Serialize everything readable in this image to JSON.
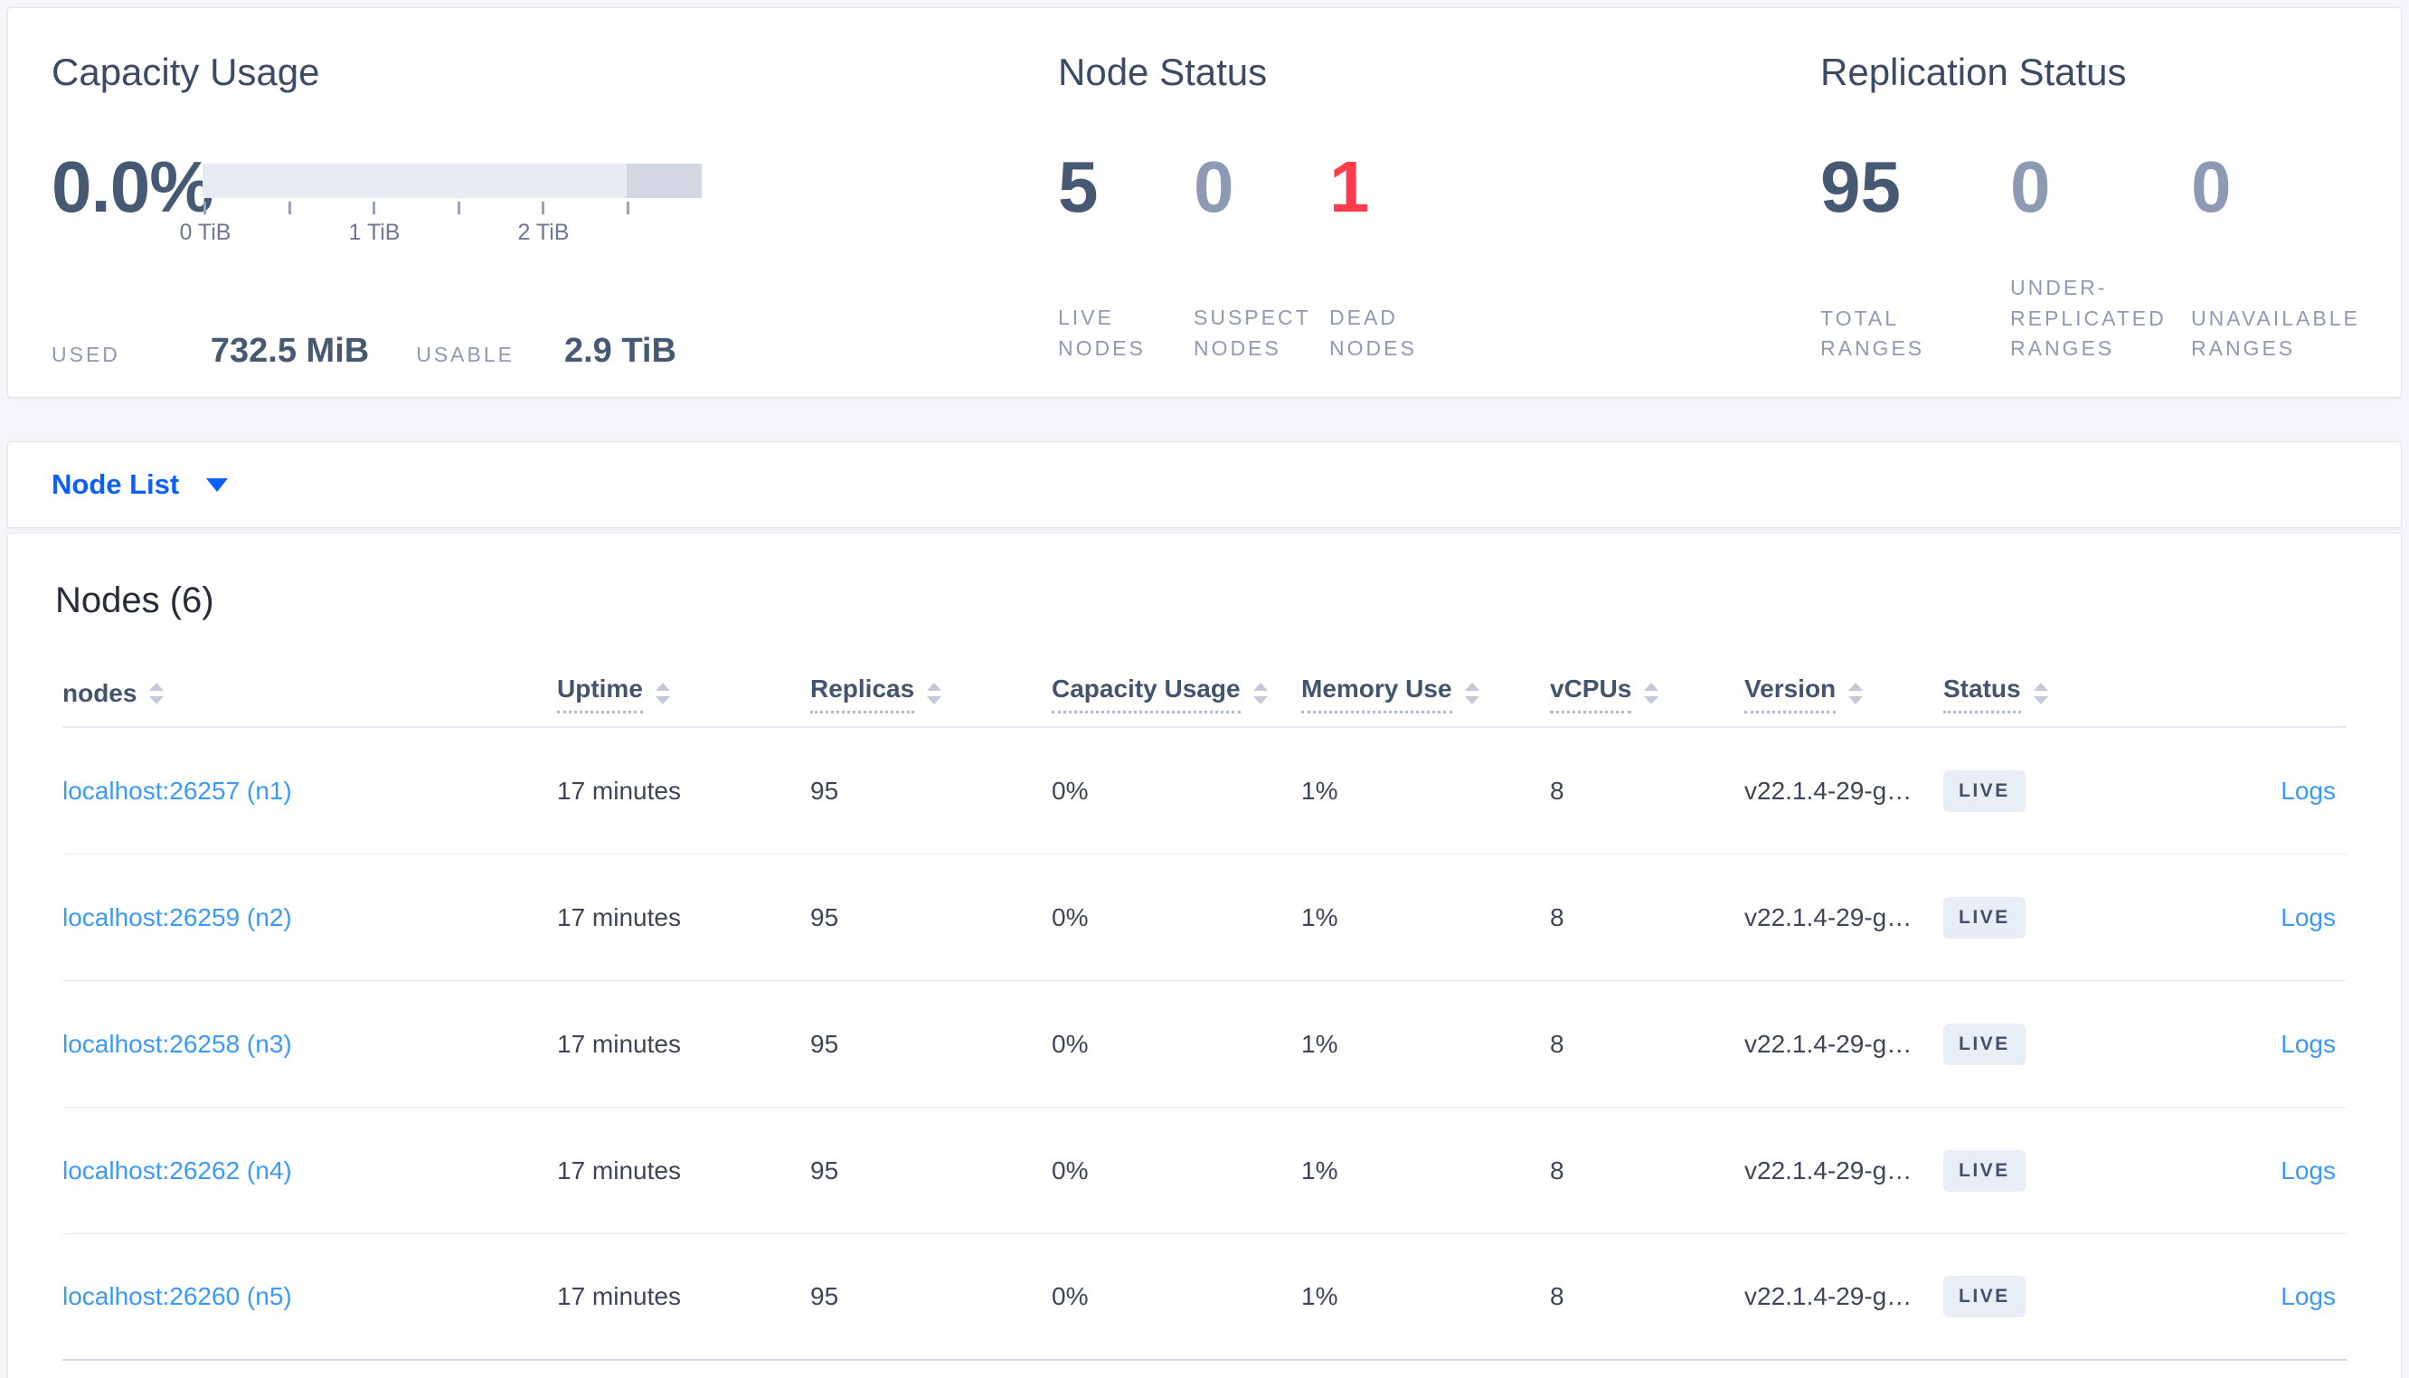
{
  "summary": {
    "capacity": {
      "title": "Capacity Usage",
      "percent": "0.0%",
      "bar_segments": [
        {
          "color": "#e9ebf2",
          "width_pct": 85
        },
        {
          "color": "#d4d8e2",
          "width_pct": 15
        }
      ],
      "tick_labels": [
        "0 TiB",
        "1 TiB",
        "2 TiB"
      ],
      "used_label": "USED",
      "used_value": "732.5 MiB",
      "usable_label": "USABLE",
      "usable_value": "2.9 TiB"
    },
    "node_status": {
      "title": "Node Status",
      "metrics": [
        {
          "value": "5",
          "label": "LIVE NODES",
          "tone": "dark"
        },
        {
          "value": "0",
          "label": "SUSPECT NODES",
          "tone": "muted"
        },
        {
          "value": "1",
          "label": "DEAD NODES",
          "tone": "red"
        }
      ]
    },
    "replication": {
      "title": "Replication Status",
      "metrics": [
        {
          "value": "95",
          "label": "TOTAL RANGES",
          "tone": "dark"
        },
        {
          "value": "0",
          "label": "UNDER-REPLICATED RANGES",
          "tone": "muted"
        },
        {
          "value": "0",
          "label": "UNAVAILABLE RANGES",
          "tone": "muted"
        }
      ]
    }
  },
  "node_list_bar": {
    "label": "Node List"
  },
  "nodes_section": {
    "title": "Nodes (6)",
    "columns": [
      {
        "label": "nodes",
        "underlined": false
      },
      {
        "label": "Uptime",
        "underlined": true
      },
      {
        "label": "Replicas",
        "underlined": true
      },
      {
        "label": "Capacity Usage",
        "underlined": true
      },
      {
        "label": "Memory Use",
        "underlined": true
      },
      {
        "label": "vCPUs",
        "underlined": true
      },
      {
        "label": "Version",
        "underlined": true
      },
      {
        "label": "Status",
        "underlined": true
      }
    ],
    "rows": [
      {
        "address": "localhost:26257 (n1)",
        "uptime": "17 minutes",
        "replicas": "95",
        "capacity_usage": "0%",
        "memory_use": "1%",
        "vcpus": "8",
        "version": "v22.1.4-29-g…",
        "status": "LIVE",
        "logs_label": "Logs"
      },
      {
        "address": "localhost:26259 (n2)",
        "uptime": "17 minutes",
        "replicas": "95",
        "capacity_usage": "0%",
        "memory_use": "1%",
        "vcpus": "8",
        "version": "v22.1.4-29-g…",
        "status": "LIVE",
        "logs_label": "Logs"
      },
      {
        "address": "localhost:26258 (n3)",
        "uptime": "17 minutes",
        "replicas": "95",
        "capacity_usage": "0%",
        "memory_use": "1%",
        "vcpus": "8",
        "version": "v22.1.4-29-g…",
        "status": "LIVE",
        "logs_label": "Logs"
      },
      {
        "address": "localhost:26262 (n4)",
        "uptime": "17 minutes",
        "replicas": "95",
        "capacity_usage": "0%",
        "memory_use": "1%",
        "vcpus": "8",
        "version": "v22.1.4-29-g…",
        "status": "LIVE",
        "logs_label": "Logs"
      },
      {
        "address": "localhost:26260 (n5)",
        "uptime": "17 minutes",
        "replicas": "95",
        "capacity_usage": "0%",
        "memory_use": "1%",
        "vcpus": "8",
        "version": "v22.1.4-29-g…",
        "status": "LIVE",
        "logs_label": "Logs"
      }
    ]
  },
  "colors": {
    "accent_blue": "#0b5fff",
    "link_blue": "#3b99fc",
    "dead_red": "#ff3b4c",
    "metric_dark": "#475872",
    "metric_muted": "#8e99b3",
    "live_badge_bg": "#e9edf5"
  }
}
